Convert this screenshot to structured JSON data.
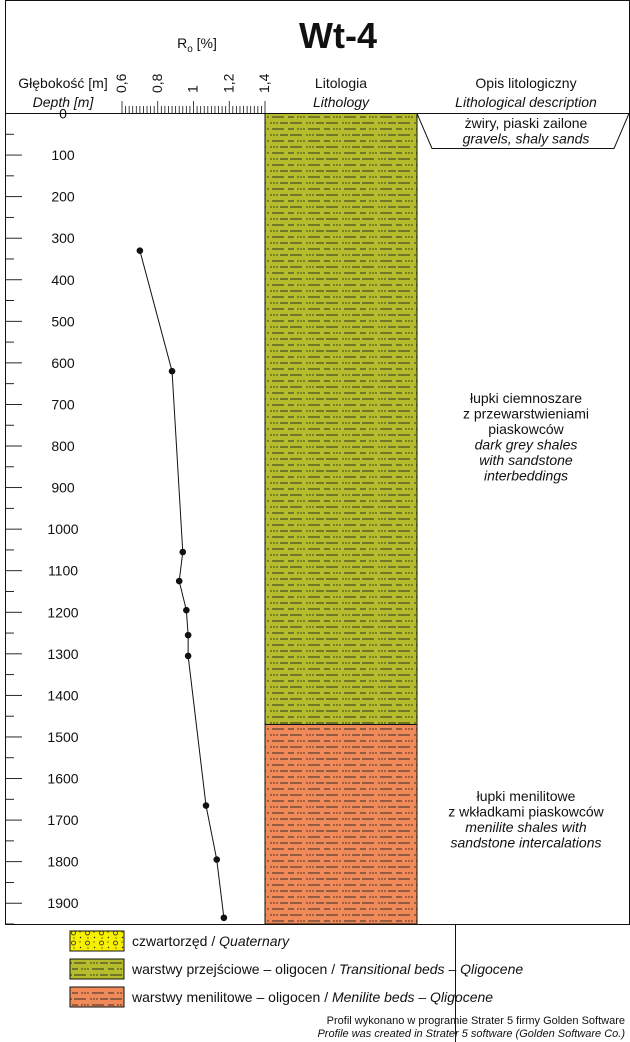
{
  "chart_data": {
    "type": "line",
    "title": "Wt-4",
    "ro_axis": {
      "label_main": "R",
      "label_sub": "o",
      "label_unit": " [%]",
      "ticks": [
        "0,6",
        "0,8",
        "1",
        "1,2",
        "1,4"
      ],
      "range": [
        0.6,
        1.4
      ]
    },
    "depth_axis": {
      "label_pl": "Głębokość [m]",
      "label_en": "Depth [m]",
      "ticks": [
        0,
        100,
        200,
        300,
        400,
        500,
        600,
        700,
        800,
        900,
        1000,
        1100,
        1200,
        1300,
        1400,
        1500,
        1600,
        1700,
        1800,
        1900
      ],
      "range": [
        0,
        1950
      ]
    },
    "lithology_header": {
      "pl": "Litologia",
      "en": "Lithology"
    },
    "description_header": {
      "pl": "Opis litologiczny",
      "en": "Lithological description"
    },
    "series": [
      {
        "x": [
          0.7,
          0.88,
          0.94,
          0.92,
          0.96,
          0.97,
          0.97,
          1.07,
          1.13,
          1.17
        ],
        "y": [
          330,
          620,
          1055,
          1125,
          1195,
          1255,
          1305,
          1665,
          1795,
          1935
        ]
      }
    ],
    "layers": [
      {
        "top": 0,
        "bottom": 1470,
        "color": "#b5bd2c",
        "pattern": "shale"
      },
      {
        "top": 1470,
        "bottom": 1950,
        "color": "#f08a58",
        "pattern": "shale"
      }
    ],
    "descriptions": [
      {
        "lines": [
          "żwiry, piaski zailone"
        ],
        "lines_en": [
          "gravels, shaly sands"
        ],
        "depth": 25
      },
      {
        "lines": [
          "łupki ciemnoszare",
          "z przewarstwieniami",
          "piaskowców"
        ],
        "lines_en": [
          "dark grey shales",
          "with sandstone",
          "interbeddings"
        ],
        "depth": 780
      },
      {
        "lines": [
          "łupki menilitowe",
          "z wkładkami piaskowców"
        ],
        "lines_en": [
          "menilite shales with",
          "sandstone intercalations"
        ],
        "depth": 1700
      }
    ]
  },
  "legend": [
    {
      "pl": "czwartorzęd / ",
      "en": "Quaternary",
      "color": "#f7f000",
      "pattern": "gravel"
    },
    {
      "pl": "warstwy przejściowe – oligocen / ",
      "en": "Transitional beds – Qligocene",
      "color": "#b5bd2c",
      "pattern": "shale"
    },
    {
      "pl": "warstwy menilitowe – oligocen / ",
      "en": "Menilite beds – Qligocene",
      "color": "#f08a58",
      "pattern": "shale"
    }
  ],
  "credit": {
    "pl": "Profil wykonano w programie Strater 5 firmy Golden Software",
    "en": "Profile was created in Strater 5 software (Golden Software Co.)"
  }
}
